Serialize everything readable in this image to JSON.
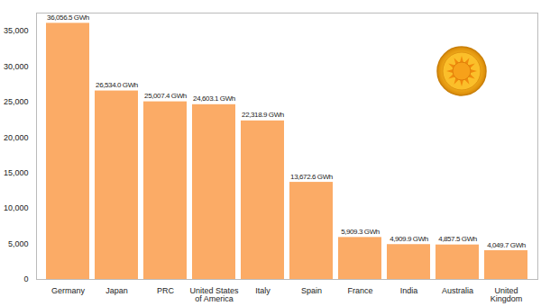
{
  "chart_data": {
    "type": "bar",
    "categories": [
      "Germany",
      "Japan",
      "PRC",
      "United States of America",
      "Italy",
      "Spain",
      "France",
      "India",
      "Australia",
      "United Kingdom"
    ],
    "values": [
      36056.5,
      26534.0,
      25007.4,
      24603.1,
      22318.9,
      13672.6,
      5909.3,
      4909.9,
      4857.5,
      4049.7
    ],
    "value_labels": [
      "36,056.5 GWh",
      "26,534.0 GWh",
      "25,007.4 GWh",
      "24,603.1 GWh",
      "22,318.9 GWh",
      "13,672.6 GWh",
      "5,909.3 GWh",
      "4,909.9 GWh",
      "4,857.5 GWh",
      "4,049.7 GWh"
    ],
    "data_labels": true,
    "color": "#fbab66",
    "ylim": [
      0,
      37500
    ],
    "yticks": [
      0,
      {
        "value": 5000,
        "label": "5,000"
      },
      {
        "value": 10000,
        "label": "10,000"
      },
      {
        "value": 15000,
        "label": "15,000"
      },
      {
        "value": 20000,
        "label": "20,000"
      },
      {
        "value": 25000,
        "label": "25,000"
      },
      {
        "value": 30000,
        "label": "30,000"
      },
      {
        "value": 35000,
        "label": "35,000"
      }
    ],
    "grid": false
  }
}
